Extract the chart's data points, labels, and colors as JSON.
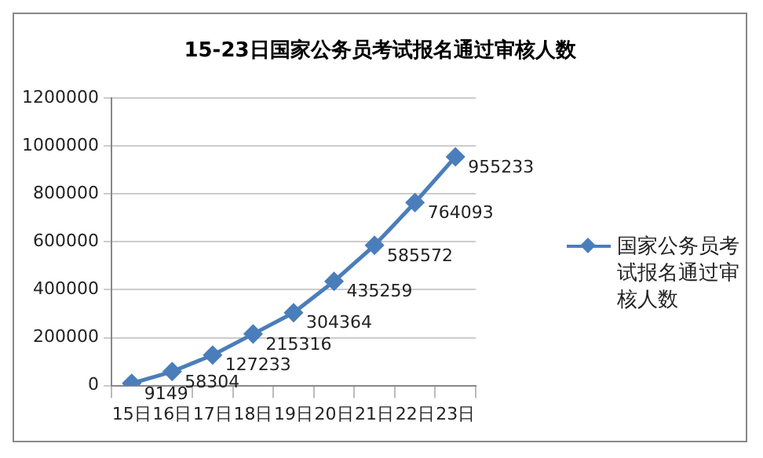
{
  "chart_data": {
    "type": "line",
    "title": "15-23日国家公务员考试报名通过审核人数",
    "categories": [
      "15日",
      "16日",
      "17日",
      "18日",
      "19日",
      "20日",
      "21日",
      "22日",
      "23日"
    ],
    "series": [
      {
        "name": "国家公务员考试报名通过审核人数",
        "color": "#4a7ebb",
        "values": [
          9149,
          58304,
          127233,
          215316,
          304364,
          435259,
          585572,
          764093,
          955233
        ]
      }
    ],
    "ylim": [
      0,
      1200000
    ],
    "yticks": [
      0,
      200000,
      400000,
      600000,
      800000,
      1000000,
      1200000
    ],
    "grid": "y",
    "legend": "right",
    "marker": "diamond",
    "line_style": "solid",
    "data_labels": true
  }
}
